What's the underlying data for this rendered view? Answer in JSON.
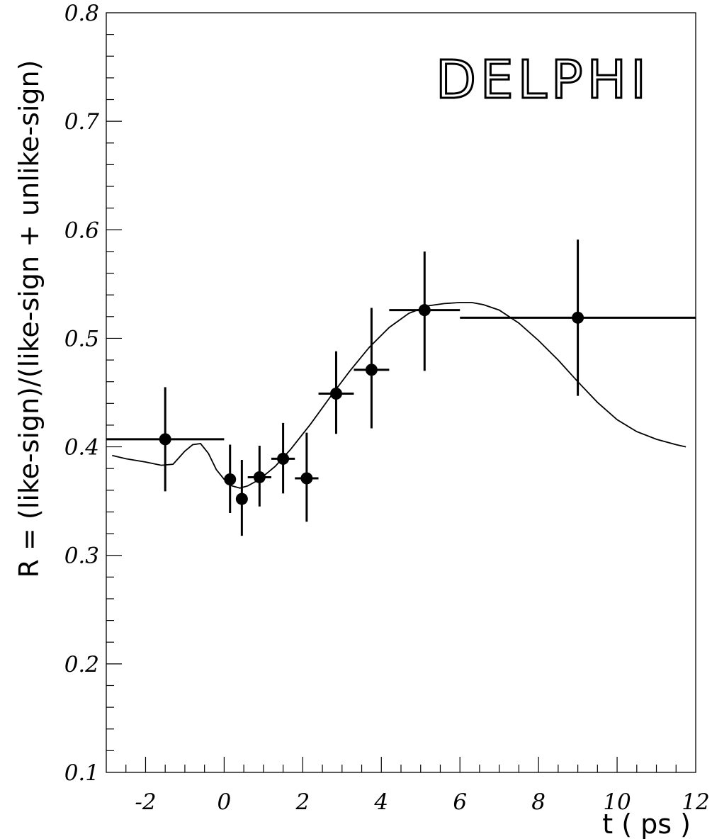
{
  "chart_data": {
    "type": "scatter",
    "xlabel": "t ( ps )",
    "ylabel": "R = (like-sign)/(like-sign + unlike-sign)",
    "annotation": "DELPHI",
    "xlim": [
      -3,
      12
    ],
    "ylim": [
      0.1,
      0.8
    ],
    "x_ticks": [
      -2,
      0,
      2,
      4,
      6,
      8,
      10,
      12
    ],
    "y_ticks": [
      0.1,
      0.2,
      0.3,
      0.4,
      0.5,
      0.6,
      0.7,
      0.8
    ],
    "grid": false,
    "legend": "none",
    "points": [
      {
        "x": -1.5,
        "y": 0.407,
        "xlo": -3.0,
        "xhi": 0.0,
        "ylo": 0.359,
        "yhi": 0.455
      },
      {
        "x": 0.15,
        "y": 0.37,
        "xlo": 0.15,
        "xhi": 0.15,
        "ylo": 0.339,
        "yhi": 0.402
      },
      {
        "x": 0.45,
        "y": 0.352,
        "xlo": 0.45,
        "xhi": 0.45,
        "ylo": 0.318,
        "yhi": 0.388
      },
      {
        "x": 0.9,
        "y": 0.372,
        "xlo": 0.6,
        "xhi": 1.2,
        "ylo": 0.345,
        "yhi": 0.401
      },
      {
        "x": 1.5,
        "y": 0.389,
        "xlo": 1.2,
        "xhi": 1.8,
        "ylo": 0.357,
        "yhi": 0.422
      },
      {
        "x": 2.1,
        "y": 0.371,
        "xlo": 1.8,
        "xhi": 2.4,
        "ylo": 0.331,
        "yhi": 0.413
      },
      {
        "x": 2.85,
        "y": 0.449,
        "xlo": 2.4,
        "xhi": 3.3,
        "ylo": 0.412,
        "yhi": 0.488
      },
      {
        "x": 3.75,
        "y": 0.471,
        "xlo": 3.3,
        "xhi": 4.2,
        "ylo": 0.417,
        "yhi": 0.528
      },
      {
        "x": 5.1,
        "y": 0.526,
        "xlo": 4.2,
        "xhi": 6.0,
        "ylo": 0.47,
        "yhi": 0.58
      },
      {
        "x": 9.0,
        "y": 0.519,
        "xlo": 6.0,
        "xhi": 12.0,
        "ylo": 0.447,
        "yhi": 0.591
      }
    ],
    "fit_curve": {
      "x": [
        -2.85,
        -2.5,
        -2.0,
        -1.6,
        -1.3,
        -1.0,
        -0.8,
        -0.6,
        -0.4,
        -0.2,
        0.0,
        0.2,
        0.4,
        0.6,
        0.9,
        1.3,
        1.7,
        2.2,
        2.7,
        3.2,
        3.7,
        4.2,
        4.7,
        5.2,
        5.6,
        6.0,
        6.3,
        6.6,
        7.0,
        7.5,
        8.0,
        8.5,
        9.0,
        9.5,
        10.0,
        10.5,
        11.0,
        11.5,
        11.75
      ],
      "y": [
        0.392,
        0.389,
        0.386,
        0.383,
        0.384,
        0.396,
        0.402,
        0.403,
        0.394,
        0.379,
        0.37,
        0.364,
        0.362,
        0.364,
        0.37,
        0.382,
        0.398,
        0.421,
        0.446,
        0.47,
        0.492,
        0.51,
        0.523,
        0.53,
        0.532,
        0.533,
        0.533,
        0.531,
        0.526,
        0.514,
        0.498,
        0.48,
        0.46,
        0.441,
        0.425,
        0.414,
        0.407,
        0.402,
        0.4
      ]
    }
  }
}
